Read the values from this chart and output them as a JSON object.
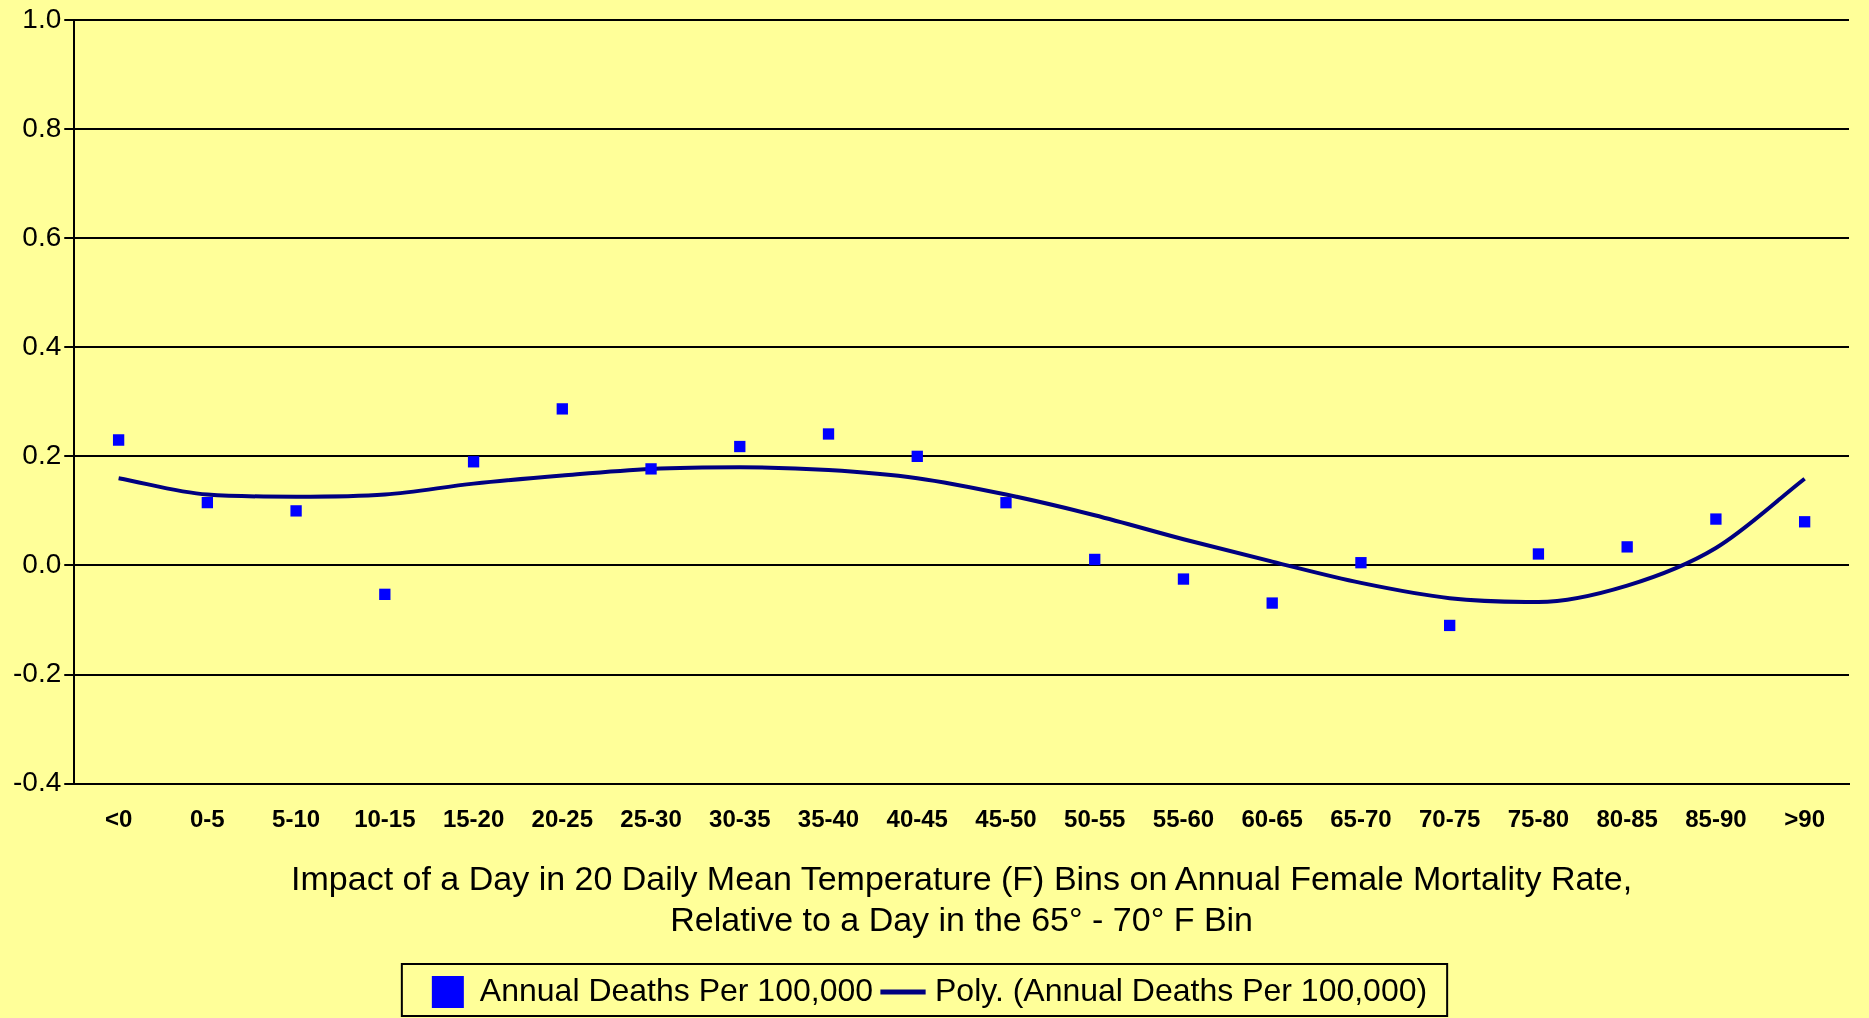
{
  "chart_data": {
    "type": "line",
    "xlabel": "Impact of a Day in 20 Daily Mean Temperature (F) Bins on Annual Female Mortality Rate,\nRelative to a Day in the 65° - 70° F Bin",
    "categories": [
      "<0",
      "0-5",
      "5-10",
      "10-15",
      "15-20",
      "20-25",
      "25-30",
      "30-35",
      "35-40",
      "40-45",
      "45-50",
      "50-55",
      "55-60",
      "60-65",
      "65-70",
      "70-75",
      "75-80",
      "80-85",
      "85-90",
      ">90"
    ],
    "series": [
      {
        "name": "Annual Deaths Per 100,000",
        "type": "scatter",
        "marker": "square",
        "color": "#0000ff",
        "values": [
          0.23,
          0.115,
          0.1,
          -0.053,
          0.19,
          0.287,
          0.177,
          0.218,
          0.241,
          0.2,
          0.115,
          0.011,
          -0.025,
          -0.069,
          0.005,
          -0.11,
          0.021,
          0.034,
          0.085,
          0.08
        ]
      },
      {
        "name": "Poly. (Annual Deaths Per 100,000)",
        "marker": "none",
        "line_style": "solid",
        "color": "#000080",
        "values": [
          0.16,
          0.13,
          0.126,
          0.13,
          0.15,
          0.165,
          0.177,
          0.18,
          0.175,
          0.16,
          0.13,
          0.092,
          0.048,
          0.007,
          -0.032,
          -0.06,
          -0.067,
          -0.037,
          0.032,
          0.159
        ]
      }
    ],
    "ylim": [
      -0.4,
      1.0
    ],
    "yticks": [
      {
        "value": -0.4,
        "label": "-0.4"
      },
      {
        "value": -0.2,
        "label": "-0.2"
      },
      {
        "value": 0,
        "label": "0.0"
      },
      {
        "value": 0.2,
        "label": "0.2"
      },
      {
        "value": 0.4,
        "label": "0.4"
      },
      {
        "value": 0.6,
        "label": "0.6"
      },
      {
        "value": 0.8,
        "label": "0.8"
      },
      {
        "value": 1.0,
        "label": "1.0"
      }
    ],
    "grid": "y",
    "legend": "bottom"
  }
}
